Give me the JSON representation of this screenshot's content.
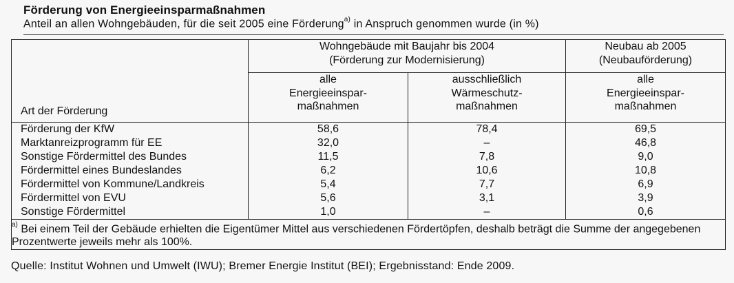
{
  "title": "Förderung von Energieeinsparmaßnahmen",
  "subtitle": {
    "text": "Anteil an allen Wohngebäuden, für die seit 2005 eine Förderung",
    "footnote_mark": "a)",
    "text_after": " in Anspruch genommen wurde (in %)"
  },
  "header": {
    "group_existing_line1": "Wohngebäude mit Baujahr bis 2004",
    "group_existing_line2": "(Förderung zur Modernisierung)",
    "group_new_line1": "Neubau ab 2005",
    "group_new_line2": "(Neubauförderung)",
    "col_label": "Art der Förderung",
    "col_a_lines": [
      "alle",
      "Energieeinspar-",
      "maßnahmen"
    ],
    "col_b_lines": [
      "ausschließlich",
      "Wärmeschutz-",
      "maßnahmen"
    ],
    "col_c_lines": [
      "alle",
      "Energieeinspar-",
      "maßnahmen"
    ]
  },
  "rows": [
    {
      "label": "Förderung der KfW",
      "a": "58,6",
      "b": "78,4",
      "c": "69,5"
    },
    {
      "label": "Marktanreizprogramm für EE",
      "a": "32,0",
      "b": "–",
      "c": "46,8"
    },
    {
      "label": "Sonstige Fördermittel des Bundes",
      "a": "11,5",
      "b": "7,8",
      "c": "9,0"
    },
    {
      "label": "Fördermittel eines Bundeslandes",
      "a": "6,2",
      "b": "10,6",
      "c": "10,8"
    },
    {
      "label": "Fördermittel von Kommune/Landkreis",
      "a": "5,4",
      "b": "7,7",
      "c": "6,9"
    },
    {
      "label": "Fördermittel von EVU",
      "a": "5,6",
      "b": "3,1",
      "c": "3,9"
    },
    {
      "label": "Sonstige Fördermittel",
      "a": "1,0",
      "b": "–",
      "c": "0,6"
    }
  ],
  "footnote": {
    "mark": "a)",
    "text": " Bei einem Teil der Gebäude erhielten die Eigentümer Mittel aus verschiedenen Fördertöpfen, deshalb beträgt die Summe der angegebenen Prozentwerte jeweils mehr als 100%."
  },
  "source": "Quelle: Institut Wohnen und Umwelt (IWU); Bremer Energie Institut (BEI); Ergebnisstand: Ende 2009."
}
